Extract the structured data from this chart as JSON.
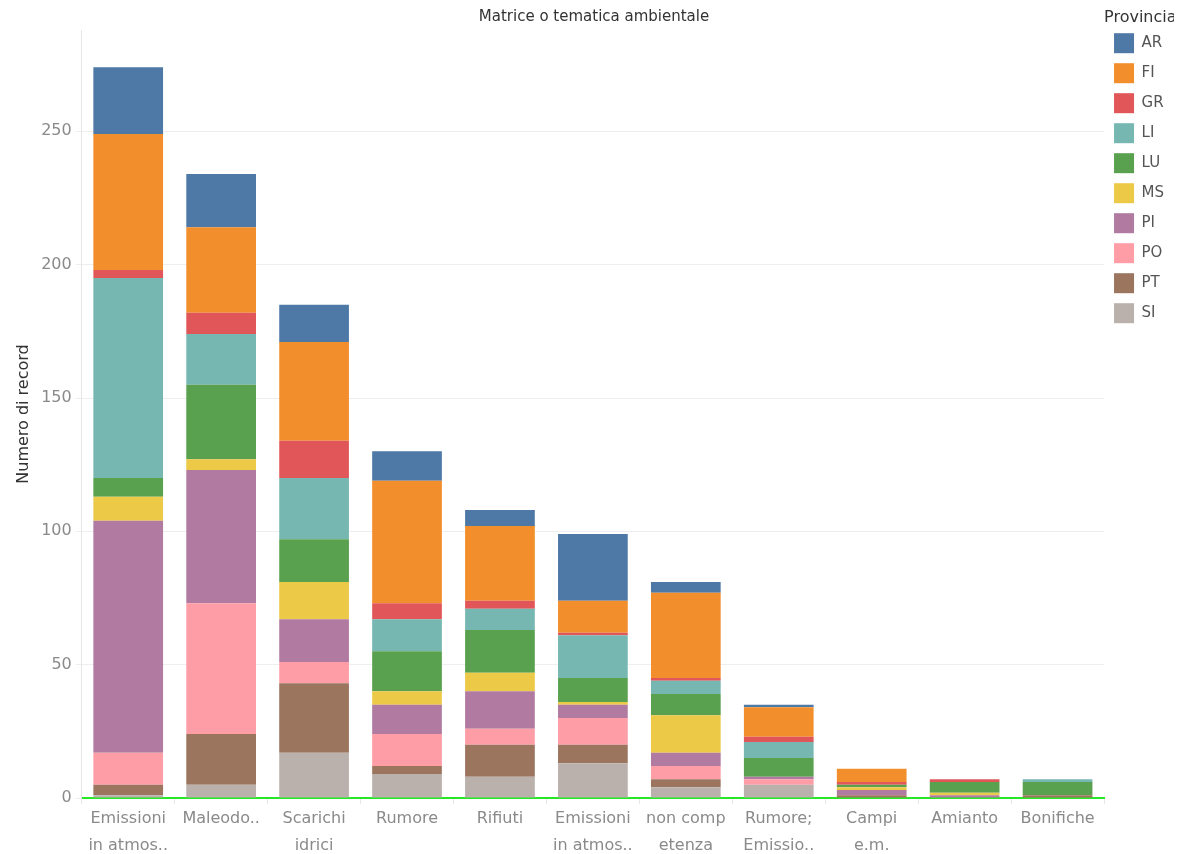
{
  "chart_data": {
    "type": "bar",
    "title": "Matrice o tematica ambientale",
    "ylabel": "Numero di record",
    "legend_title": "Provincia",
    "categories": [
      "Emissioni in atmos..",
      "Maleodo..",
      "Scarichi idrici",
      "Rumore",
      "Rifiuti",
      "Emissioni in atmos..",
      "non comp etenza",
      "Rumore; Emissio..",
      "Campi e.m.",
      "Amianto",
      "Bonifiche"
    ],
    "series": [
      {
        "name": "SI",
        "color": "#bab0ac",
        "values": [
          1,
          5,
          17,
          9,
          8,
          13,
          4,
          5,
          null,
          null,
          null
        ]
      },
      {
        "name": "PT",
        "color": "#9c755f",
        "values": [
          4,
          19,
          26,
          3,
          12,
          7,
          3,
          null,
          1,
          null,
          1
        ]
      },
      {
        "name": "PO",
        "color": "#ff9da7",
        "values": [
          12,
          49,
          8,
          12,
          6,
          10,
          5,
          2,
          null,
          null,
          null
        ]
      },
      {
        "name": "PI",
        "color": "#b07aa1",
        "values": [
          87,
          50,
          16,
          11,
          14,
          5,
          5,
          1,
          2,
          1,
          null
        ]
      },
      {
        "name": "MS",
        "color": "#edc948",
        "values": [
          9,
          4,
          14,
          5,
          7,
          1,
          14,
          null,
          1,
          1,
          null
        ]
      },
      {
        "name": "LU",
        "color": "#59a14f",
        "values": [
          7,
          28,
          16,
          15,
          16,
          9,
          8,
          7,
          1,
          4,
          5
        ]
      },
      {
        "name": "LI",
        "color": "#76b7b2",
        "values": [
          75,
          19,
          23,
          12,
          8,
          16,
          5,
          6,
          null,
          null,
          1
        ]
      },
      {
        "name": "GR",
        "color": "#e15759",
        "values": [
          3,
          8,
          14,
          6,
          3,
          1,
          1,
          2,
          1,
          1,
          null
        ]
      },
      {
        "name": "FI",
        "color": "#f28e2b",
        "values": [
          51,
          32,
          37,
          46,
          28,
          12,
          32,
          11,
          5,
          null,
          null
        ]
      },
      {
        "name": "AR",
        "color": "#4e79a7",
        "values": [
          25,
          20,
          14,
          11,
          6,
          25,
          4,
          1,
          null,
          null,
          null
        ]
      }
    ],
    "stacked": true,
    "ylim": [
      0,
      288
    ],
    "yticks": [
      0,
      50,
      100,
      150,
      200,
      250
    ],
    "grid": "y",
    "legend": "top right"
  }
}
